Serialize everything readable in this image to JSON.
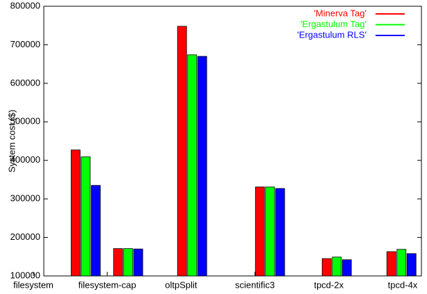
{
  "chart_data": {
    "type": "bar",
    "y_label": "System cost ($)",
    "categories": [
      "filesystem",
      "filesystem-cap",
      "oltpSplit",
      "scientific3",
      "tpcd-2x",
      "tpcd-4x"
    ],
    "series": [
      {
        "name": "'Minerva Tag'",
        "color": "#ff0000",
        "values": [
          427000,
          171000,
          748000,
          331000,
          145000,
          163000
        ]
      },
      {
        "name": "'Ergastulum Tag'",
        "color": "#00ff00",
        "values": [
          409000,
          171000,
          674000,
          331000,
          149000,
          169000
        ]
      },
      {
        "name": "'Ergastulum RLS'",
        "color": "#0000ff",
        "values": [
          335000,
          170000,
          670000,
          327000,
          142000,
          158000
        ]
      }
    ],
    "ylim": [
      100000,
      800000
    ],
    "yticks": [
      100000,
      200000,
      300000,
      400000,
      500000,
      600000,
      700000,
      800000
    ],
    "legend": "top-right"
  }
}
